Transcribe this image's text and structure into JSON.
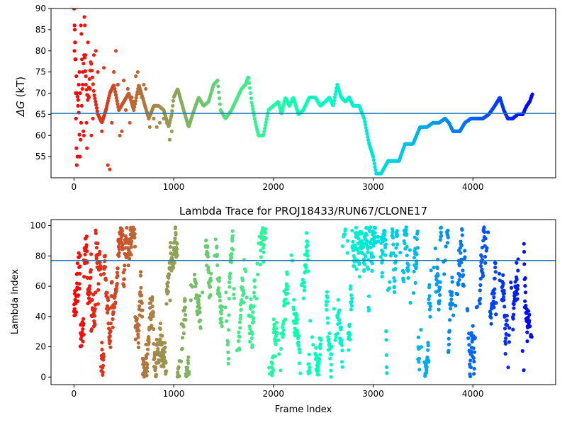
{
  "chart_data": [
    {
      "type": "scatter",
      "title": "",
      "xlabel": "",
      "ylabel": "ΔG (kT)",
      "ylabel_symbol": "ΔG",
      "ylabel_unit": "(kT)",
      "xlim": [
        -230,
        4830
      ],
      "ylim": [
        50,
        90
      ],
      "xticks": [
        0,
        1000,
        2000,
        3000,
        4000
      ],
      "xtick_labels": [
        "0",
        "1000",
        "2000",
        "3000",
        "4000"
      ],
      "yticks": [
        55,
        60,
        65,
        70,
        75,
        80,
        85,
        90
      ],
      "ytick_labels": [
        "55",
        "60",
        "65",
        "70",
        "75",
        "80",
        "85",
        "90"
      ],
      "hline": {
        "y": 65.2,
        "color": "#1f77b4"
      },
      "colormap": "rainbow_r",
      "grid": false,
      "legend": "none",
      "trace": [
        [
          0,
          90
        ],
        [
          15,
          80
        ],
        [
          30,
          70
        ],
        [
          45,
          68
        ],
        [
          60,
          55
        ],
        [
          75,
          65
        ],
        [
          90,
          75
        ],
        [
          105,
          80
        ],
        [
          120,
          72
        ],
        [
          140,
          68
        ],
        [
          170,
          78
        ],
        [
          200,
          70
        ],
        [
          240,
          65
        ],
        [
          280,
          63
        ],
        [
          320,
          66
        ],
        [
          360,
          70
        ],
        [
          400,
          72
        ],
        [
          450,
          66
        ],
        [
          500,
          68
        ],
        [
          550,
          70
        ],
        [
          600,
          66
        ],
        [
          650,
          72
        ],
        [
          700,
          68
        ],
        [
          750,
          64
        ],
        [
          800,
          67
        ],
        [
          850,
          67
        ],
        [
          900,
          66
        ],
        [
          950,
          62
        ],
        [
          980,
          65
        ],
        [
          1000,
          69
        ],
        [
          1040,
          71
        ],
        [
          1100,
          66
        ],
        [
          1150,
          62
        ],
        [
          1190,
          65
        ],
        [
          1250,
          69
        ],
        [
          1300,
          67
        ],
        [
          1350,
          68
        ],
        [
          1400,
          72
        ],
        [
          1440,
          73
        ],
        [
          1470,
          66
        ],
        [
          1520,
          64
        ],
        [
          1580,
          66
        ],
        [
          1620,
          68
        ],
        [
          1680,
          71
        ],
        [
          1720,
          72
        ],
        [
          1750,
          74
        ],
        [
          1780,
          68
        ],
        [
          1820,
          63
        ],
        [
          1850,
          60
        ],
        [
          1900,
          60
        ],
        [
          1950,
          66
        ],
        [
          2000,
          67
        ],
        [
          2050,
          68
        ],
        [
          2080,
          65
        ],
        [
          2120,
          69
        ],
        [
          2160,
          67
        ],
        [
          2200,
          69
        ],
        [
          2250,
          65
        ],
        [
          2300,
          66
        ],
        [
          2360,
          69
        ],
        [
          2420,
          69
        ],
        [
          2470,
          67
        ],
        [
          2520,
          68
        ],
        [
          2560,
          69
        ],
        [
          2600,
          67
        ],
        [
          2640,
          72
        ],
        [
          2680,
          69
        ],
        [
          2720,
          68
        ],
        [
          2760,
          69
        ],
        [
          2800,
          67
        ],
        [
          2860,
          67
        ],
        [
          2910,
          64
        ],
        [
          2960,
          58
        ],
        [
          3000,
          55
        ],
        [
          3030,
          51
        ],
        [
          3080,
          51
        ],
        [
          3150,
          54
        ],
        [
          3200,
          54
        ],
        [
          3260,
          54
        ],
        [
          3320,
          58
        ],
        [
          3400,
          58
        ],
        [
          3470,
          62
        ],
        [
          3540,
          62
        ],
        [
          3600,
          63
        ],
        [
          3660,
          63
        ],
        [
          3720,
          64
        ],
        [
          3760,
          63
        ],
        [
          3800,
          61
        ],
        [
          3870,
          61
        ],
        [
          3920,
          63
        ],
        [
          3980,
          64
        ],
        [
          4050,
          64
        ],
        [
          4100,
          64
        ],
        [
          4160,
          65
        ],
        [
          4220,
          67
        ],
        [
          4270,
          69
        ],
        [
          4310,
          66
        ],
        [
          4350,
          64
        ],
        [
          4400,
          64
        ],
        [
          4450,
          65
        ],
        [
          4500,
          65
        ],
        [
          4540,
          67
        ],
        [
          4570,
          68
        ],
        [
          4600,
          70
        ]
      ],
      "markers": [
        [
          0,
          90
        ],
        [
          3,
          90
        ],
        [
          8,
          85
        ],
        [
          10,
          82
        ],
        [
          5,
          80
        ],
        [
          12,
          78
        ],
        [
          18,
          70
        ],
        [
          20,
          64
        ],
        [
          25,
          57
        ],
        [
          28,
          53
        ],
        [
          35,
          55
        ],
        [
          40,
          67
        ],
        [
          48,
          72
        ],
        [
          55,
          75
        ],
        [
          62,
          70
        ],
        [
          70,
          86
        ],
        [
          75,
          84
        ],
        [
          80,
          78
        ],
        [
          88,
          72
        ],
        [
          95,
          61
        ],
        [
          100,
          60
        ],
        [
          105,
          88
        ],
        [
          110,
          86
        ],
        [
          115,
          79
        ],
        [
          120,
          74
        ],
        [
          125,
          63
        ],
        [
          130,
          57
        ],
        [
          140,
          82
        ],
        [
          150,
          69
        ],
        [
          160,
          71
        ],
        [
          175,
          60
        ],
        [
          190,
          64
        ],
        [
          200,
          79
        ],
        [
          220,
          80
        ],
        [
          240,
          75
        ],
        [
          260,
          64
        ],
        [
          280,
          61
        ],
        [
          300,
          76
        ],
        [
          320,
          66
        ],
        [
          340,
          53
        ],
        [
          360,
          52
        ],
        [
          380,
          63
        ],
        [
          400,
          75
        ],
        [
          420,
          80
        ],
        [
          440,
          72
        ],
        [
          460,
          60
        ],
        [
          480,
          61
        ],
        [
          500,
          73
        ],
        [
          520,
          66
        ],
        [
          540,
          71
        ],
        [
          560,
          63
        ],
        [
          580,
          69
        ],
        [
          600,
          68
        ],
        [
          620,
          74
        ],
        [
          640,
          75
        ],
        [
          660,
          70
        ],
        [
          680,
          69
        ],
        [
          700,
          72
        ],
        [
          720,
          71
        ],
        [
          740,
          65
        ],
        [
          760,
          62
        ],
        [
          800,
          64
        ],
        [
          830,
          62
        ],
        [
          860,
          63
        ],
        [
          900,
          64
        ],
        [
          930,
          63
        ],
        [
          960,
          59
        ],
        [
          980,
          61
        ]
      ]
    },
    {
      "type": "scatter",
      "title": "Lambda Trace for PROJ18433/RUN67/CLONE17",
      "xlabel": "Frame Index",
      "ylabel": "Lambda Index",
      "xlim": [
        -230,
        4830
      ],
      "ylim": [
        -5,
        104
      ],
      "xticks": [
        0,
        1000,
        2000,
        3000,
        4000
      ],
      "xtick_labels": [
        "0",
        "1000",
        "2000",
        "3000",
        "4000"
      ],
      "yticks": [
        0,
        20,
        40,
        60,
        80,
        100
      ],
      "ytick_labels": [
        "0",
        "20",
        "40",
        "60",
        "80",
        "100"
      ],
      "hline": {
        "y": 77,
        "color": "#1f77b4"
      },
      "colormap": "rainbow_r",
      "grid": false,
      "legend": "none",
      "x_max": 4600,
      "y_max": 99
    }
  ]
}
